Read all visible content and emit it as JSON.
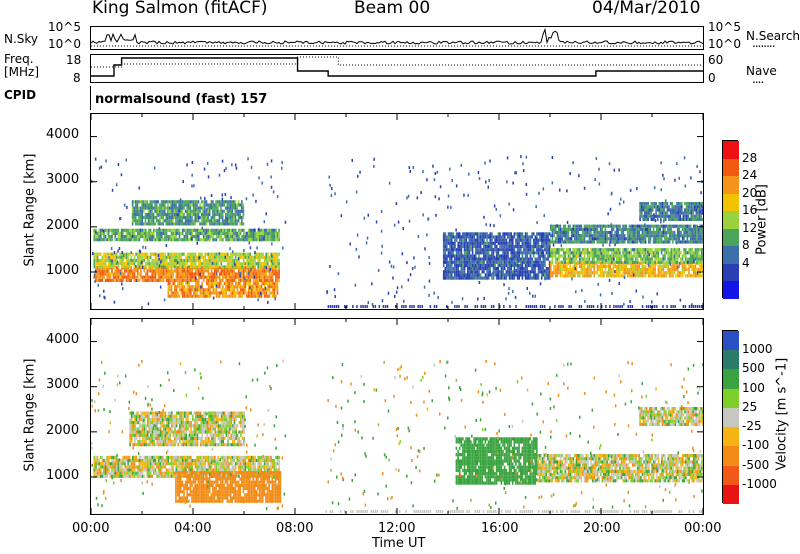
{
  "header": {
    "station": "King Salmon (fitACF)",
    "beam": "Beam 00",
    "date": "04/Mar/2010"
  },
  "left_labels": {
    "nsky": "N.Sky",
    "freq": "Freq.",
    "freq_unit": "[MHz]",
    "cpid": "CPID"
  },
  "right_labels": {
    "nsearch": "N.Search",
    "nsearch_dots": "........",
    "nave": "Nave",
    "nave_dots": "...."
  },
  "cpid_text": "normalsound (fast) 157",
  "noise_axis": {
    "ticks": [
      "10^5",
      "10^0"
    ]
  },
  "freq_axis": {
    "ticks": [
      "18",
      "8"
    ]
  },
  "nave_axis": {
    "ticks": [
      "60",
      "0"
    ]
  },
  "time_axis": {
    "label": "Time UT",
    "ticks": [
      "00:00",
      "04:00",
      "08:00",
      "12:00",
      "16:00",
      "20:00",
      "00:00"
    ]
  },
  "range_axis": {
    "label": "Slant Range [km]",
    "ticks": [
      "4000",
      "3000",
      "2000",
      "1000"
    ]
  },
  "power_colorbar": {
    "label": "Power [dB]",
    "ticks": [
      "28",
      "24",
      "20",
      "16",
      "12",
      "8",
      "4"
    ],
    "colors": [
      "#ee1111",
      "#f25a12",
      "#f5941c",
      "#f2c200",
      "#99d23c",
      "#4aa55a",
      "#3d6fa8",
      "#2a3fb3",
      "#1414e8"
    ]
  },
  "velocity_colorbar": {
    "label": "Velocity [m s^-1]",
    "ticks": [
      "1000",
      "500",
      "100",
      "25",
      "-25",
      "-100",
      "-500",
      "-1000"
    ],
    "colors": [
      "#2a4fc2",
      "#2a7b6a",
      "#3aa340",
      "#7fcf2a",
      "#c7c7c1",
      "#f6b316",
      "#f28b17",
      "#f25817",
      "#e81414"
    ]
  },
  "chart_data": [
    {
      "type": "heatmap",
      "name_panel": "power",
      "xlabel": "Time UT",
      "ylabel": "Slant Range [km]",
      "xlim_hours": [
        0,
        24
      ],
      "ylim_km": [
        180,
        4500
      ],
      "colorbar_label": "Power [dB]",
      "regions": [
        {
          "t": [
            0.1,
            7.4
          ],
          "r": [
            850,
            1150
          ],
          "value_db": 24
        },
        {
          "t": [
            0.1,
            7.4
          ],
          "r": [
            1150,
            1450
          ],
          "value_db": 16
        },
        {
          "t": [
            0.1,
            7.4
          ],
          "r": [
            1750,
            2000
          ],
          "value_db": 12
        },
        {
          "t": [
            1.6,
            6.0
          ],
          "r": [
            2100,
            2600
          ],
          "value_db": 10
        },
        {
          "t": [
            3.0,
            7.3
          ],
          "r": [
            500,
            850
          ],
          "value_db": 22
        },
        {
          "t": [
            13.8,
            18.0
          ],
          "r": [
            900,
            1900
          ],
          "value_db": 6
        },
        {
          "t": [
            18.0,
            24.0
          ],
          "r": [
            950,
            1250
          ],
          "value_db": 20
        },
        {
          "t": [
            18.0,
            24.0
          ],
          "r": [
            1250,
            1550
          ],
          "value_db": 13
        },
        {
          "t": [
            18.0,
            24.0
          ],
          "r": [
            1700,
            2100
          ],
          "value_db": 9
        },
        {
          "t": [
            21.5,
            24.0
          ],
          "r": [
            2200,
            2600
          ],
          "value_db": 8
        }
      ]
    },
    {
      "type": "heatmap",
      "name_panel": "velocity",
      "xlabel": "Time UT",
      "ylabel": "Slant Range [km]",
      "xlim_hours": [
        0,
        24
      ],
      "ylim_km": [
        180,
        4500
      ],
      "colorbar_label": "Velocity [m s^-1]",
      "regions": [
        {
          "t": [
            0.1,
            7.4
          ],
          "r": [
            1050,
            1500
          ],
          "value_ms": 0
        },
        {
          "t": [
            1.5,
            6.0
          ],
          "r": [
            1750,
            2500
          ],
          "value_ms": 0
        },
        {
          "t": [
            3.3,
            7.4
          ],
          "r": [
            500,
            1200
          ],
          "value_ms": -150
        },
        {
          "t": [
            14.3,
            17.5
          ],
          "r": [
            900,
            1900
          ],
          "value_ms": 150
        },
        {
          "t": [
            17.5,
            24.0
          ],
          "r": [
            950,
            1550
          ],
          "value_ms": 0
        },
        {
          "t": [
            21.5,
            24.0
          ],
          "r": [
            2200,
            2600
          ],
          "value_ms": 0
        }
      ]
    }
  ]
}
